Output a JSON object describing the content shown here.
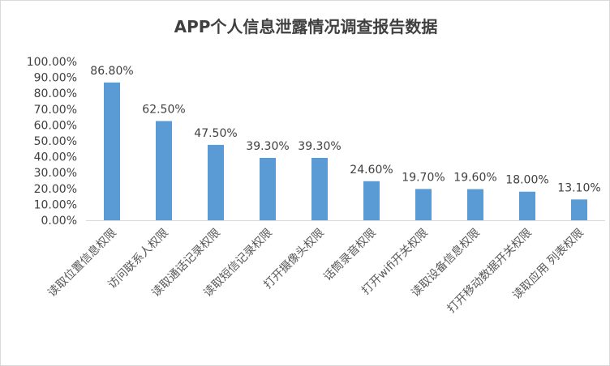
{
  "chart_data": {
    "type": "bar",
    "title": "APP个人信息泄露情况调查报告数据",
    "categories": [
      "读取位置信息权限",
      "访问联系人权限",
      "读取通话记录权限",
      "读取短信记录权限",
      "打开摄像头权限",
      "话筒录音权限",
      "打开wifi开关权限",
      "读取设备信息权限",
      "打开移动数据开关权限",
      "读取应用 列表权限"
    ],
    "values": [
      86.8,
      62.5,
      47.5,
      39.3,
      39.3,
      24.6,
      19.7,
      19.6,
      18.0,
      13.1
    ],
    "data_labels": [
      "86.80%",
      "62.50%",
      "47.50%",
      "39.30%",
      "39.30%",
      "24.60%",
      "19.70%",
      "19.60%",
      "18.00%",
      "13.10%"
    ],
    "ylim": [
      0,
      100
    ],
    "yticks": [
      "0.00%",
      "10.00%",
      "20.00%",
      "30.00%",
      "40.00%",
      "50.00%",
      "60.00%",
      "70.00%",
      "80.00%",
      "90.00%",
      "100.00%"
    ],
    "grid": false,
    "legend": "none",
    "bar_color": "#5b9bd5",
    "axis_color": "#d9d9d9"
  }
}
